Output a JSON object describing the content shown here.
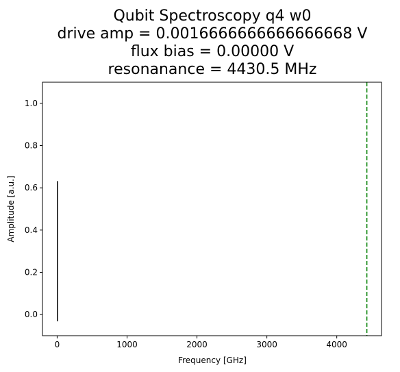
{
  "chart_data": {
    "type": "line",
    "title_lines": [
      "Qubit Spectroscopy q4 w0",
      "drive amp = 0.0016666666666666668 V",
      "flux bias = 0.00000 V",
      "resonanance = 4430.5 MHz"
    ],
    "xlabel": "Frequency [GHz]",
    "ylabel": "Amplitude [a.u.]",
    "xlim": [
      -210,
      4640
    ],
    "ylim": [
      -0.1,
      1.1
    ],
    "x_ticks": [
      0,
      1000,
      2000,
      3000,
      4000
    ],
    "y_ticks": [
      0.0,
      0.2,
      0.4,
      0.6,
      0.8,
      1.0
    ],
    "grid": false,
    "series": [
      {
        "color": "#000000",
        "x": [
          4.35,
          4.36,
          4.37,
          4.38,
          4.39,
          4.4,
          4.41,
          4.42,
          4.425,
          4.43,
          4.435,
          4.44,
          4.45,
          4.46,
          4.47,
          4.48,
          4.49,
          4.5,
          4.51
        ],
        "y": [
          0.04,
          0.08,
          0.02,
          0.12,
          0.05,
          0.18,
          0.1,
          0.35,
          0.63,
          -0.03,
          0.45,
          0.22,
          0.14,
          0.09,
          0.16,
          0.05,
          0.11,
          0.03,
          0.07
        ]
      }
    ],
    "vlines": [
      {
        "x": 4430.5,
        "color": "#008000",
        "style": "dashed"
      }
    ]
  }
}
